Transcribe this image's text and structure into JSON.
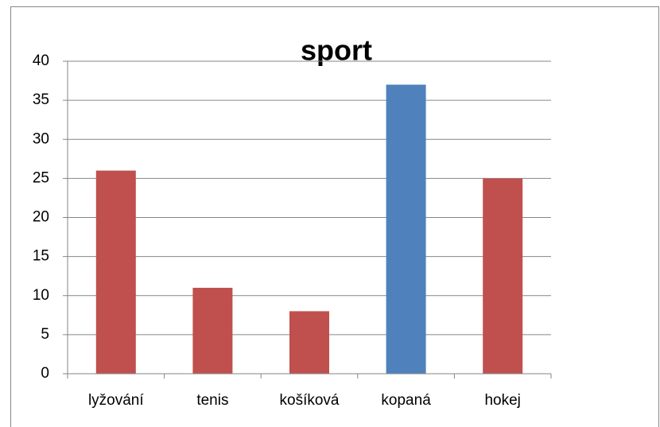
{
  "chart_data": {
    "type": "bar",
    "title": "sport",
    "categories": [
      "lyžování",
      "tenis",
      "košíková",
      "kopaná",
      "hokej"
    ],
    "values": [
      26,
      11,
      8,
      37,
      25
    ],
    "colors": [
      "#c0504d",
      "#c0504d",
      "#c0504d",
      "#4f81bd",
      "#c0504d"
    ],
    "ylim": [
      0,
      40
    ],
    "yticks": [
      0,
      5,
      10,
      15,
      20,
      25,
      30,
      35,
      40
    ],
    "grid": true
  }
}
